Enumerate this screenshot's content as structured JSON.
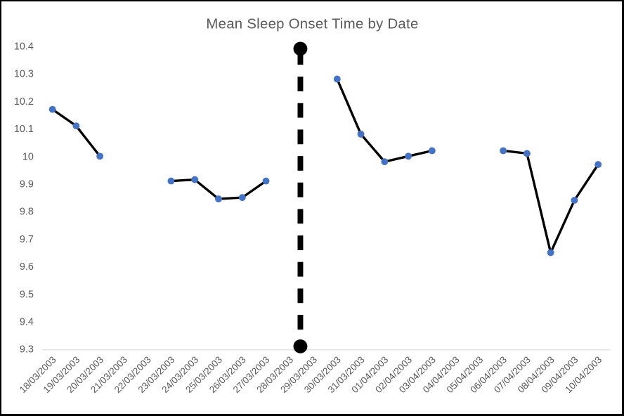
{
  "window": {
    "background_color": "#ffffff",
    "border_color": "#000000"
  },
  "chart_data": {
    "type": "line",
    "title": "Mean Sleep Onset Time by Date",
    "title_color": "#595959",
    "tick_label_color": "#595959",
    "axis_line_color": "#e2e2e2",
    "grid": false,
    "legend": "none",
    "xlabel": "",
    "ylabel": "",
    "ylim": [
      9.3,
      10.4
    ],
    "yticks": [
      10.4,
      10.3,
      10.2,
      10.1,
      10,
      9.9,
      9.8,
      9.7,
      9.6,
      9.5,
      9.4,
      9.3
    ],
    "ytick_labels": [
      "10.4",
      "10.3",
      "10.2",
      "10.1",
      "10",
      "9.9",
      "9.8",
      "9.7",
      "9.6",
      "9.5",
      "9.4",
      "9.3"
    ],
    "categories": [
      "18/03/2003",
      "19/03/2003",
      "20/03/2003",
      "21/03/2003",
      "22/03/2003",
      "23/03/2003",
      "24/03/2003",
      "25/03/2003",
      "26/03/2003",
      "27/03/2003",
      "28/03/2003",
      "29/03/2003",
      "30/03/2003",
      "31/03/2003",
      "01/04/2003",
      "02/04/2003",
      "03/04/2003",
      "04/04/2003",
      "05/04/2003",
      "06/04/2003",
      "07/04/2003",
      "08/04/2003",
      "09/04/2003",
      "10/04/2003"
    ],
    "series": [
      {
        "line_color": "#000000",
        "marker_color": "#4472C4",
        "values": [
          10.17,
          10.11,
          10.0,
          null,
          null,
          9.91,
          9.915,
          9.845,
          9.85,
          9.91,
          null,
          null,
          10.28,
          10.08,
          9.98,
          10.0,
          10.02,
          null,
          null,
          10.02,
          10.01,
          9.65,
          9.84,
          9.97
        ]
      }
    ],
    "annotation_line": {
      "style": "dashed-vertical-with-round-endcaps",
      "color": "#000000",
      "between_categories": [
        "28/03/2003",
        "29/03/2003"
      ],
      "x_index": 10.45,
      "y_top": 10.39,
      "y_bottom": 9.31
    }
  }
}
